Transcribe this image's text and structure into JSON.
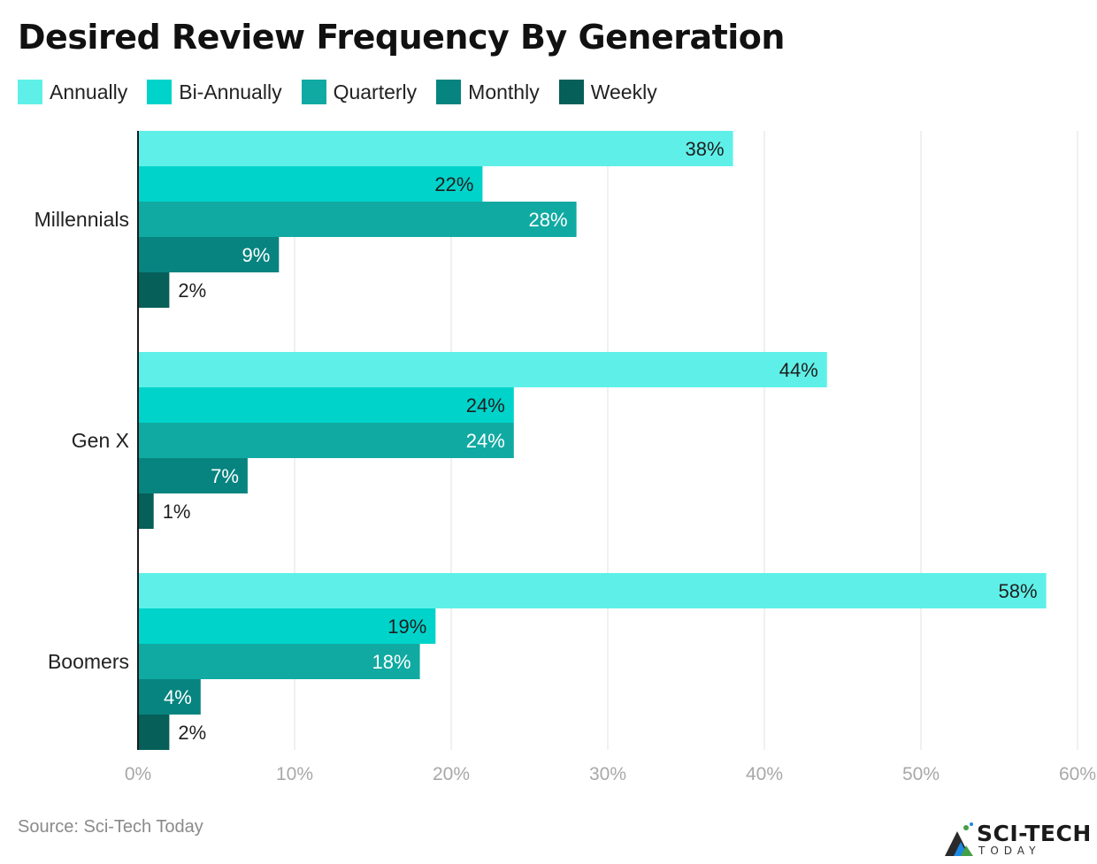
{
  "chart_data": {
    "type": "bar",
    "orientation": "horizontal",
    "title": "Desired Review Frequency By Generation",
    "categories": [
      "Millennials",
      "Gen X",
      "Boomers"
    ],
    "series": [
      {
        "name": "Annually",
        "color": "#5ef0e8",
        "values": [
          38,
          44,
          58
        ]
      },
      {
        "name": "Bi-Annually",
        "color": "#00d3ca",
        "values": [
          22,
          24,
          19
        ]
      },
      {
        "name": "Quarterly",
        "color": "#10aaa2",
        "values": [
          28,
          24,
          18
        ]
      },
      {
        "name": "Monthly",
        "color": "#078480",
        "values": [
          9,
          7,
          4
        ]
      },
      {
        "name": "Weekly",
        "color": "#065f59",
        "values": [
          2,
          1,
          2
        ]
      }
    ],
    "value_suffix": "%",
    "xlim": [
      0,
      60
    ],
    "xticks": [
      0,
      10,
      20,
      30,
      40,
      50,
      60
    ],
    "xtick_labels": [
      "0%",
      "10%",
      "20%",
      "30%",
      "40%",
      "50%",
      "60%"
    ],
    "grid": true,
    "legend": "top-left"
  },
  "footer": {
    "source": "Source: Sci-Tech Today",
    "logo_main": "SCI-TECH",
    "logo_sub": "TODAY"
  }
}
